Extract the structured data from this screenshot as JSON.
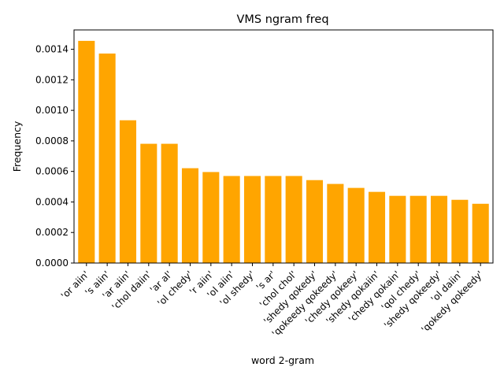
{
  "chart_data": {
    "type": "bar",
    "title": "VMS ngram freq",
    "xlabel": "word 2-gram",
    "ylabel": "Frequency",
    "ylim": [
      0,
      0.0015267
    ],
    "yticks": [
      "0.0000",
      "0.0002",
      "0.0004",
      "0.0006",
      "0.0008",
      "0.0010",
      "0.0012",
      "0.0014"
    ],
    "bar_color": "#ffa500",
    "categories": [
      "'or aiin'",
      "'s aiin'",
      "'ar aiin'",
      "'chol daiin'",
      "'ar al'",
      "'ol chedy'",
      "'r aiin'",
      "'ol aiin'",
      "'ol shedy'",
      "'s ar'",
      "'chol chol'",
      "'shedy qokedy'",
      "'qokeedy qokeedy'",
      "'chedy qokeey'",
      "'shedy qokaiin'",
      "'chedy qokain'",
      "'qol chedy'",
      "'shedy qokeedy'",
      "'ol daiin'",
      "'qokedy qokeedy'"
    ],
    "values": [
      0.001455,
      0.001372,
      0.000935,
      0.000781,
      0.000781,
      0.000621,
      0.000596,
      0.00057,
      0.00057,
      0.00057,
      0.00057,
      0.000543,
      0.000518,
      0.000492,
      0.000466,
      0.00044,
      0.00044,
      0.00044,
      0.000414,
      0.000388
    ]
  }
}
